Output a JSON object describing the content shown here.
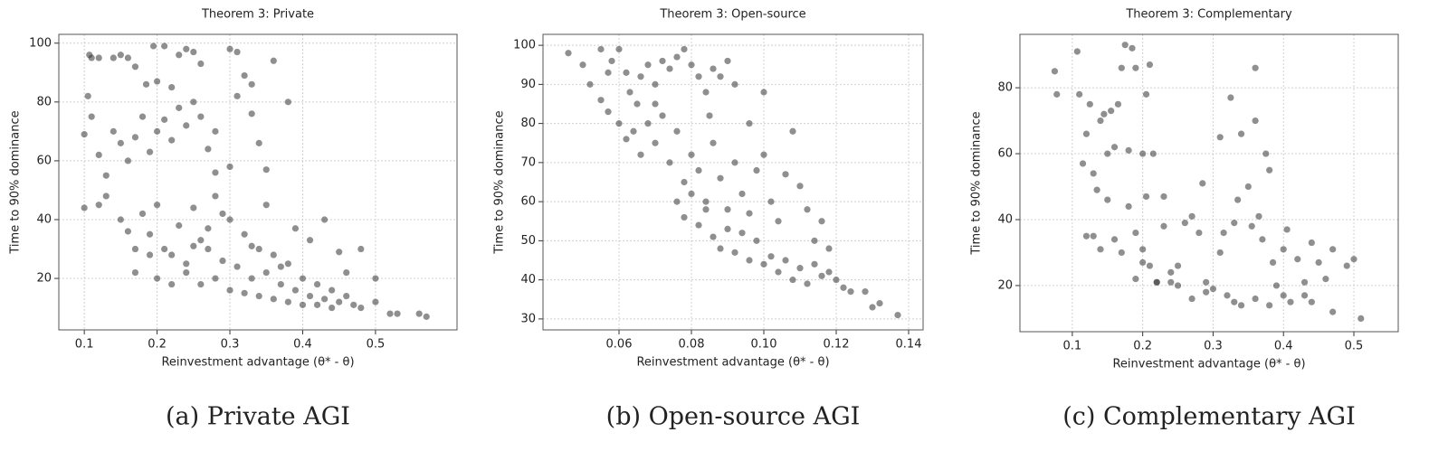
{
  "chart_data": [
    {
      "type": "scatter",
      "title": "Theorem 3: Private",
      "xlabel": "Reinvestment advantage (θ* - θ)",
      "ylabel": "Time to 90% dominance",
      "caption": "(a) Private AGI",
      "color": "#333333",
      "grid": true,
      "xlim": [
        0.065,
        0.612
      ],
      "ylim": [
        2.5,
        103
      ],
      "xticks": [
        0.1,
        0.2,
        0.3,
        0.4,
        0.5
      ],
      "yticks": [
        20,
        40,
        60,
        80,
        100
      ],
      "x": [
        0.1,
        0.1,
        0.105,
        0.107,
        0.11,
        0.12,
        0.14,
        0.15,
        0.16,
        0.17,
        0.185,
        0.195,
        0.2,
        0.21,
        0.22,
        0.23,
        0.24,
        0.25,
        0.26,
        0.3,
        0.31,
        0.32,
        0.33,
        0.36,
        0.38,
        0.11,
        0.12,
        0.13,
        0.14,
        0.15,
        0.16,
        0.17,
        0.18,
        0.19,
        0.2,
        0.21,
        0.22,
        0.23,
        0.24,
        0.25,
        0.26,
        0.27,
        0.28,
        0.3,
        0.31,
        0.33,
        0.34,
        0.35,
        0.12,
        0.13,
        0.15,
        0.16,
        0.17,
        0.18,
        0.19,
        0.2,
        0.21,
        0.22,
        0.23,
        0.24,
        0.25,
        0.26,
        0.27,
        0.28,
        0.29,
        0.3,
        0.31,
        0.32,
        0.33,
        0.34,
        0.35,
        0.36,
        0.37,
        0.38,
        0.39,
        0.4,
        0.41,
        0.42,
        0.43,
        0.44,
        0.45,
        0.46,
        0.47,
        0.48,
        0.5,
        0.5,
        0.52,
        0.53,
        0.56,
        0.57,
        0.2,
        0.22,
        0.24,
        0.26,
        0.28,
        0.3,
        0.32,
        0.34,
        0.36,
        0.38,
        0.4,
        0.42,
        0.44,
        0.17,
        0.19,
        0.25,
        0.27,
        0.29,
        0.33,
        0.37,
        0.41,
        0.43,
        0.45,
        0.46,
        0.48,
        0.39,
        0.35,
        0.28
      ],
      "values": [
        44,
        69,
        82,
        96,
        95,
        95,
        95,
        96,
        95,
        92,
        86,
        99,
        87,
        99,
        85,
        96,
        98,
        97,
        93,
        98,
        97,
        89,
        86,
        94,
        80,
        75,
        62,
        55,
        70,
        66,
        60,
        68,
        75,
        63,
        70,
        74,
        67,
        78,
        72,
        80,
        75,
        64,
        70,
        58,
        82,
        76,
        66,
        57,
        45,
        48,
        40,
        36,
        30,
        42,
        35,
        45,
        30,
        28,
        38,
        25,
        44,
        33,
        30,
        48,
        26,
        40,
        24,
        35,
        20,
        30,
        22,
        28,
        18,
        25,
        16,
        20,
        14,
        18,
        13,
        16,
        12,
        14,
        11,
        10,
        12,
        20,
        8,
        8,
        8,
        7,
        20,
        18,
        22,
        18,
        20,
        16,
        15,
        14,
        13,
        12,
        11,
        11,
        10,
        22,
        28,
        31,
        37,
        42,
        31,
        24,
        33,
        40,
        29,
        22,
        30,
        37,
        45,
        56
      ]
    },
    {
      "type": "scatter",
      "title": "Theorem 3: Open-source",
      "xlabel": "Reinvestment advantage (θ* - θ)",
      "ylabel": "Time to 90% dominance",
      "caption": "(b) Open-source AGI",
      "color": "#333333",
      "grid": true,
      "xlim": [
        0.039,
        0.144
      ],
      "ylim": [
        27.2,
        102.8
      ],
      "xticks": [
        0.06,
        0.08,
        {
          "value": 0.1,
          "label": "0.10"
        },
        0.12,
        0.14
      ],
      "yticks": [
        30,
        40,
        50,
        60,
        70,
        80,
        90,
        100
      ],
      "x": [
        0.046,
        0.05,
        0.052,
        0.055,
        0.057,
        0.058,
        0.06,
        0.062,
        0.063,
        0.065,
        0.055,
        0.057,
        0.06,
        0.062,
        0.066,
        0.068,
        0.07,
        0.072,
        0.074,
        0.076,
        0.078,
        0.08,
        0.082,
        0.084,
        0.086,
        0.088,
        0.09,
        0.092,
        0.064,
        0.066,
        0.068,
        0.07,
        0.072,
        0.074,
        0.076,
        0.078,
        0.08,
        0.082,
        0.084,
        0.086,
        0.088,
        0.09,
        0.092,
        0.094,
        0.096,
        0.098,
        0.1,
        0.1,
        0.102,
        0.104,
        0.106,
        0.108,
        0.11,
        0.112,
        0.114,
        0.116,
        0.118,
        0.12,
        0.122,
        0.124,
        0.128,
        0.13,
        0.132,
        0.137,
        0.076,
        0.078,
        0.08,
        0.082,
        0.084,
        0.086,
        0.088,
        0.09,
        0.092,
        0.094,
        0.096,
        0.098,
        0.1,
        0.102,
        0.104,
        0.106,
        0.108,
        0.11,
        0.112,
        0.114,
        0.116,
        0.118,
        0.096,
        0.07,
        0.085
      ],
      "values": [
        98,
        95,
        90,
        99,
        93,
        96,
        99,
        93,
        88,
        85,
        86,
        83,
        80,
        76,
        92,
        95,
        90,
        96,
        94,
        97,
        99,
        95,
        92,
        88,
        94,
        92,
        96,
        90,
        78,
        72,
        80,
        75,
        82,
        70,
        78,
        65,
        72,
        68,
        60,
        75,
        66,
        58,
        70,
        62,
        80,
        68,
        88,
        72,
        60,
        55,
        67,
        78,
        64,
        58,
        50,
        55,
        48,
        40,
        38,
        37,
        37,
        33,
        34,
        31,
        60,
        56,
        62,
        54,
        58,
        51,
        48,
        53,
        47,
        52,
        45,
        50,
        44,
        46,
        42,
        45,
        40,
        43,
        39,
        44,
        41,
        42,
        57,
        85,
        82
      ]
    },
    {
      "type": "scatter",
      "title": "Theorem 3: Complementary",
      "xlabel": "Reinvestment advantage (θ* - θ)",
      "ylabel": "Time to 90% dominance",
      "caption": "(c) Complementary AGI",
      "color": "#333333",
      "grid": true,
      "xlim": [
        0.0256,
        0.563
      ],
      "ylim": [
        6.0,
        96.2
      ],
      "xticks": [
        0.1,
        0.2,
        0.3,
        0.4,
        0.5
      ],
      "yticks": [
        20,
        40,
        60,
        80
      ],
      "x": [
        0.075,
        0.078,
        0.107,
        0.11,
        0.115,
        0.12,
        0.125,
        0.13,
        0.135,
        0.14,
        0.145,
        0.15,
        0.155,
        0.16,
        0.165,
        0.17,
        0.175,
        0.18,
        0.185,
        0.19,
        0.2,
        0.205,
        0.21,
        0.215,
        0.12,
        0.13,
        0.14,
        0.15,
        0.16,
        0.17,
        0.18,
        0.19,
        0.2,
        0.205,
        0.21,
        0.22,
        0.23,
        0.24,
        0.25,
        0.26,
        0.27,
        0.28,
        0.285,
        0.29,
        0.3,
        0.31,
        0.315,
        0.32,
        0.325,
        0.33,
        0.335,
        0.34,
        0.35,
        0.355,
        0.36,
        0.36,
        0.365,
        0.37,
        0.375,
        0.38,
        0.385,
        0.39,
        0.4,
        0.405,
        0.41,
        0.42,
        0.43,
        0.44,
        0.45,
        0.46,
        0.47,
        0.47,
        0.49,
        0.5,
        0.51,
        0.23,
        0.25,
        0.33,
        0.34,
        0.36,
        0.38,
        0.4,
        0.43,
        0.44,
        0.31,
        0.29,
        0.19,
        0.2,
        0.22,
        0.24,
        0.27
      ],
      "values": [
        85,
        78,
        91,
        78,
        57,
        66,
        75,
        54,
        49,
        70,
        72,
        60,
        73,
        62,
        75,
        86,
        93,
        61,
        92,
        86,
        60,
        78,
        87,
        60,
        35,
        35,
        31,
        46,
        34,
        30,
        44,
        36,
        31,
        47,
        26,
        21,
        38,
        24,
        20,
        39,
        41,
        36,
        51,
        18,
        19,
        65,
        36,
        17,
        77,
        39,
        46,
        66,
        50,
        38,
        86,
        70,
        41,
        34,
        60,
        55,
        27,
        20,
        31,
        37,
        15,
        28,
        21,
        33,
        27,
        22,
        31,
        12,
        26,
        28,
        10,
        47,
        26,
        15,
        14,
        16,
        14,
        17,
        17,
        15,
        30,
        21,
        22,
        27,
        21,
        21,
        16
      ]
    }
  ]
}
